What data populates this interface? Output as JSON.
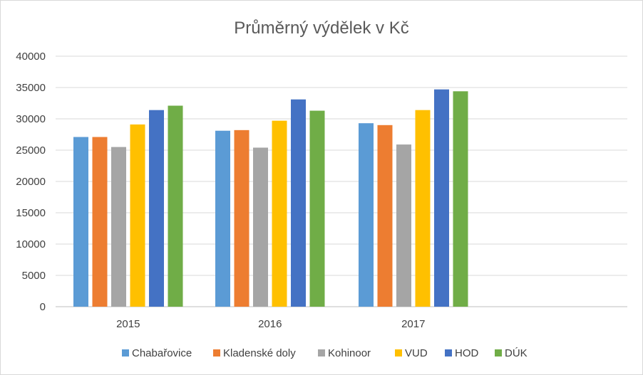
{
  "chart_data": {
    "type": "bar",
    "title": "Průměrný výdělek v Kč",
    "xlabel": "",
    "ylabel": "",
    "categories": [
      "2015",
      "2016",
      "2017"
    ],
    "ylim": [
      0,
      40000
    ],
    "yticks": [
      0,
      5000,
      10000,
      15000,
      20000,
      25000,
      30000,
      35000,
      40000
    ],
    "grid": true,
    "legend_position": "bottom",
    "series": [
      {
        "name": "Chabařovice",
        "color": "#5B9BD5",
        "values": [
          27100,
          28100,
          29300
        ]
      },
      {
        "name": "Kladenské doly",
        "color": "#ED7D31",
        "values": [
          27100,
          28200,
          29000
        ]
      },
      {
        "name": "Kohinoor",
        "color": "#A5A5A5",
        "values": [
          25500,
          25400,
          25900
        ]
      },
      {
        "name": "VUD",
        "color": "#FFC000",
        "values": [
          29100,
          29700,
          31400
        ]
      },
      {
        "name": "HOD",
        "color": "#4472C4",
        "values": [
          31400,
          33100,
          34700
        ]
      },
      {
        "name": "DÚK",
        "color": "#70AD47",
        "values": [
          32100,
          31300,
          34400
        ]
      }
    ]
  }
}
